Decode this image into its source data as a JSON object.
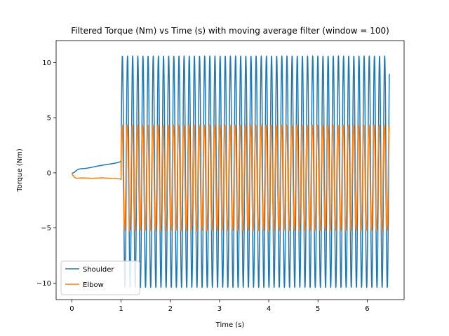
{
  "chart_data": {
    "type": "line",
    "title": "Filtered Torque (Nm) vs Time (s) with moving average filter (window = 100)",
    "xlabel": "Time (s)",
    "ylabel": "Torque (Nm)",
    "xlim": [
      -0.32,
      6.75
    ],
    "ylim": [
      -11.5,
      12.0
    ],
    "xticks": [
      0,
      1,
      2,
      3,
      4,
      5,
      6
    ],
    "yticks": [
      -10,
      -5,
      0,
      5,
      10
    ],
    "grid": false,
    "legend": "lower-left",
    "x_range": [
      0,
      6.45
    ],
    "series": [
      {
        "name": "Shoulder",
        "color": "#1f77b4",
        "segments": [
          {
            "kind": "points",
            "points": [
              [
                0.0,
                -0.05
              ],
              [
                0.05,
                0.05
              ],
              [
                0.1,
                0.25
              ],
              [
                0.15,
                0.35
              ],
              [
                0.2,
                0.38
              ],
              [
                0.3,
                0.42
              ],
              [
                0.4,
                0.5
              ],
              [
                0.5,
                0.6
              ],
              [
                0.6,
                0.68
              ],
              [
                0.7,
                0.75
              ],
              [
                0.8,
                0.82
              ],
              [
                0.9,
                0.9
              ],
              [
                0.98,
                1.0
              ],
              [
                1.0,
                1.1
              ]
            ]
          },
          {
            "kind": "oscillation",
            "t_start": 1.0,
            "t_end": 6.45,
            "period": 0.1045,
            "amplitude": 10.5,
            "offset": 0.1,
            "phase": 0.0
          }
        ]
      },
      {
        "name": "Elbow",
        "color": "#ff7f0e",
        "segments": [
          {
            "kind": "points",
            "points": [
              [
                0.0,
                -0.1
              ],
              [
                0.05,
                -0.4
              ],
              [
                0.1,
                -0.5
              ],
              [
                0.2,
                -0.45
              ],
              [
                0.4,
                -0.5
              ],
              [
                0.6,
                -0.45
              ],
              [
                0.8,
                -0.5
              ],
              [
                0.98,
                -0.55
              ],
              [
                1.0,
                -0.6
              ]
            ]
          },
          {
            "kind": "oscillation",
            "t_start": 1.0,
            "t_end": 6.45,
            "period": 0.1045,
            "amplitude": 4.8,
            "offset": -0.45,
            "phase": 0.5
          }
        ]
      }
    ]
  }
}
